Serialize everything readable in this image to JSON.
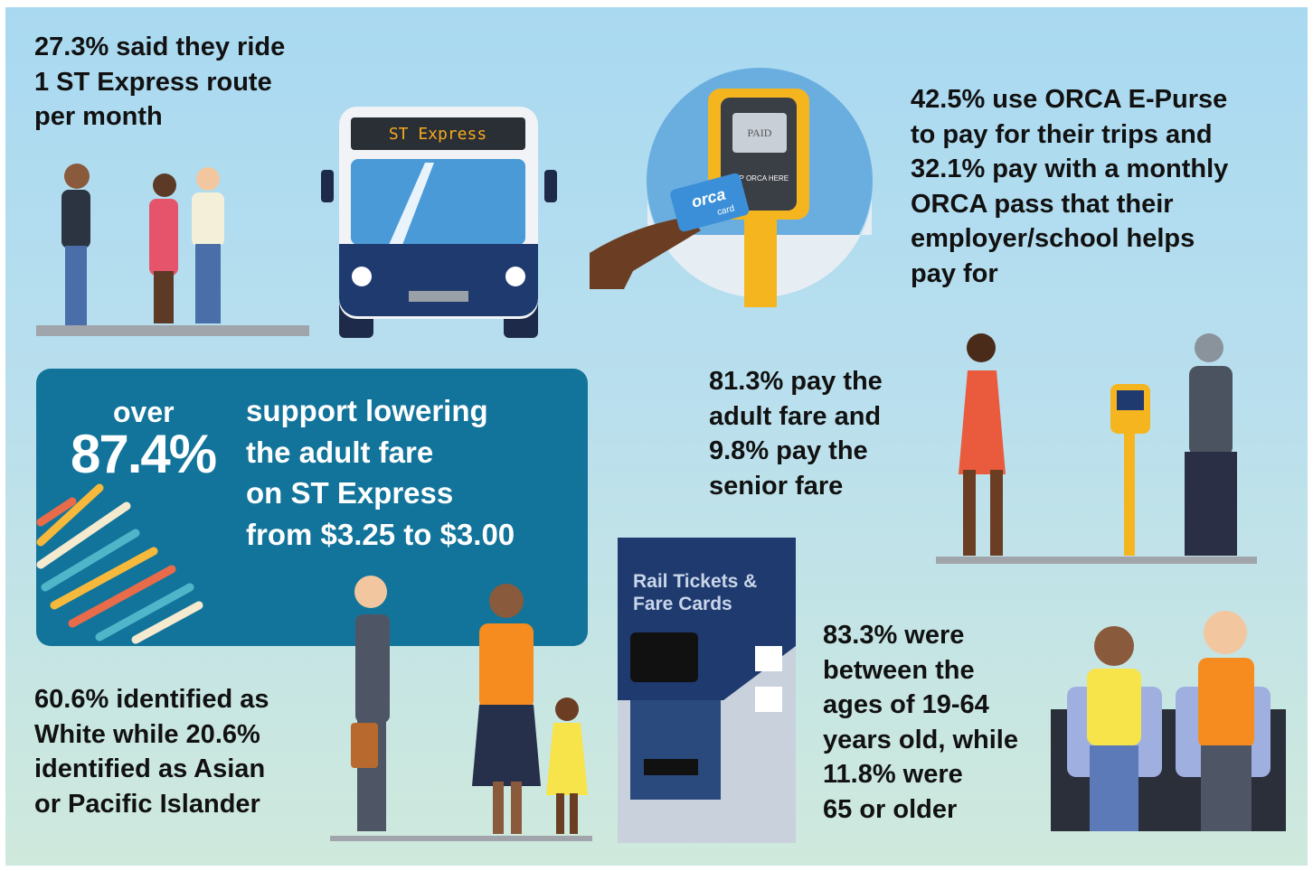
{
  "stats": [
    {
      "lines": [
        "27.3% said they ride",
        "1 ST Express route",
        "per month"
      ]
    },
    {
      "lines": [
        "42.5% use ORCA E-Purse",
        "to pay for their trips and",
        "32.1% pay with a monthly",
        "ORCA pass that their",
        "employer/school helps",
        "pay for"
      ]
    },
    {
      "lines": [
        "81.3% pay the",
        "adult fare and",
        "9.8% pay the",
        "senior fare"
      ]
    },
    {
      "lines": [
        "60.6% identified as",
        "White while 20.6%",
        "identified as Asian",
        "or Pacific Islander"
      ]
    },
    {
      "lines": [
        "83.3% were",
        "between the",
        "ages of 19-64",
        "years old, while",
        "11.8% were",
        "65 or older"
      ]
    }
  ],
  "highlight": {
    "prefix": "over",
    "figure": "87.4%",
    "lines": [
      "support lowering",
      "the adult fare",
      "on ST Express",
      "from $3.25 to $3.00"
    ]
  },
  "illustrations": {
    "bus_sign": "ST Express",
    "reader_screen": "PAID",
    "reader_prompt": "TAP ORCA HERE",
    "card_brand": "orca",
    "card_word": "card",
    "kiosk_sign": [
      "Rail Tickets &",
      "Fare Cards"
    ]
  }
}
